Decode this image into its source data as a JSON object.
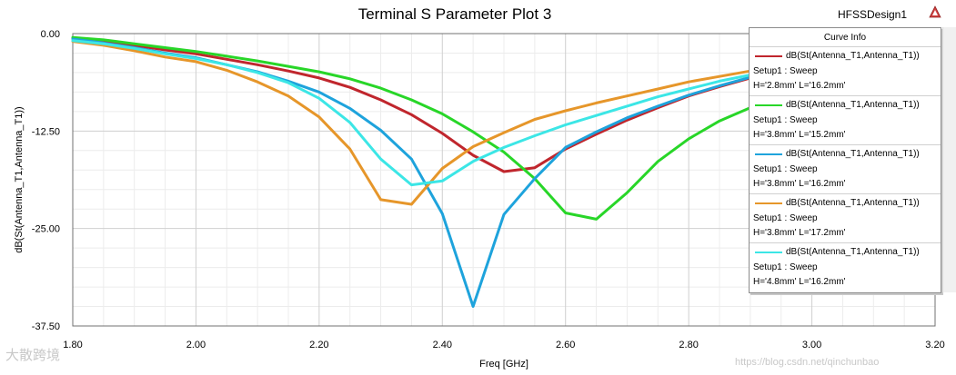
{
  "header": {
    "design_name": "HFSSDesign1"
  },
  "legend": {
    "title": "Curve Info",
    "entries": [
      {
        "name": "dB(St(Antenna_T1,Antenna_T1))",
        "setup": "Setup1 : Sweep",
        "params": "H='2.8mm' L='16.2mm'",
        "color": "#c0262d"
      },
      {
        "name": "dB(St(Antenna_T1,Antenna_T1))",
        "setup": "Setup1 : Sweep",
        "params": "H='3.8mm' L='15.2mm'",
        "color": "#28d628"
      },
      {
        "name": "dB(St(Antenna_T1,Antenna_T1))",
        "setup": "Setup1 : Sweep",
        "params": "H='3.8mm' L='16.2mm'",
        "color": "#1ea3dc"
      },
      {
        "name": "dB(St(Antenna_T1,Antenna_T1))",
        "setup": "Setup1 : Sweep",
        "params": "H='3.8mm' L='17.2mm'",
        "color": "#e6962a"
      },
      {
        "name": "dB(St(Antenna_T1,Antenna_T1))",
        "setup": "Setup1 : Sweep",
        "params": "H='4.8mm' L='16.2mm'",
        "color": "#3ce6e6"
      }
    ]
  },
  "watermarks": {
    "left": "大散跨境",
    "right": "https://blog.csdn.net/qinchunbao"
  },
  "chart_data": {
    "type": "line",
    "title": "Terminal S Parameter Plot 3",
    "xlabel": "Freq [GHz]",
    "ylabel": "dB(St(Antenna_T1,Antenna_T1))",
    "xlim": [
      1.8,
      3.2
    ],
    "ylim": [
      -37.5,
      0.0
    ],
    "xticks": [
      "1.80",
      "2.00",
      "2.20",
      "2.40",
      "2.60",
      "2.80",
      "3.00",
      "3.20"
    ],
    "yticks": [
      "0.00",
      "-12.50",
      "-25.00",
      "-37.50"
    ],
    "grid": true,
    "legend_position": "top-right",
    "x": [
      1.8,
      1.85,
      1.9,
      1.95,
      2.0,
      2.05,
      2.1,
      2.15,
      2.2,
      2.25,
      2.3,
      2.35,
      2.4,
      2.45,
      2.5,
      2.55,
      2.6,
      2.65,
      2.7,
      2.75,
      2.8,
      2.85,
      2.9
    ],
    "series": [
      {
        "name": "dB(St(Antenna_T1,Antenna_T1)) H='2.8mm' L='16.2mm'",
        "color": "#c0262d",
        "values": [
          -0.6,
          -1.0,
          -1.5,
          -2.1,
          -2.6,
          -3.3,
          -4.0,
          -4.8,
          -5.7,
          -6.9,
          -8.5,
          -10.4,
          -12.8,
          -15.6,
          -17.7,
          -17.2,
          -14.8,
          -12.9,
          -11.1,
          -9.5,
          -8.0,
          -6.8,
          -5.7
        ]
      },
      {
        "name": "dB(St(Antenna_T1,Antenna_T1)) H='3.8mm' L='15.2mm'",
        "color": "#28d628",
        "values": [
          -0.5,
          -0.8,
          -1.3,
          -1.8,
          -2.3,
          -2.9,
          -3.5,
          -4.2,
          -4.9,
          -5.8,
          -7.0,
          -8.5,
          -10.3,
          -12.6,
          -15.2,
          -18.6,
          -23.0,
          -23.8,
          -20.4,
          -16.4,
          -13.5,
          -11.2,
          -9.5
        ]
      },
      {
        "name": "dB(St(Antenna_T1,Antenna_T1)) H='3.8mm' L='16.2mm'",
        "color": "#1ea3dc",
        "values": [
          -0.7,
          -1.2,
          -1.8,
          -2.5,
          -3.1,
          -4.0,
          -4.9,
          -6.1,
          -7.5,
          -9.6,
          -12.4,
          -16.1,
          -23.1,
          -35.0,
          -23.2,
          -18.6,
          -14.6,
          -12.6,
          -10.8,
          -9.3,
          -7.9,
          -6.7,
          -5.6
        ]
      },
      {
        "name": "dB(St(Antenna_T1,Antenna_T1)) H='3.8mm' L='17.2mm'",
        "color": "#e6962a",
        "values": [
          -1.0,
          -1.5,
          -2.2,
          -3.0,
          -3.6,
          -4.7,
          -6.2,
          -8.0,
          -10.7,
          -14.8,
          -21.3,
          -21.9,
          -17.3,
          -14.5,
          -12.7,
          -11.0,
          -9.9,
          -8.9,
          -8.0,
          -7.1,
          -6.2,
          -5.5,
          -4.8
        ]
      },
      {
        "name": "dB(St(Antenna_T1,Antenna_T1)) H='4.8mm' L='16.2mm'",
        "color": "#3ce6e6",
        "values": [
          -0.9,
          -1.3,
          -1.9,
          -2.6,
          -3.2,
          -4.0,
          -5.0,
          -6.3,
          -8.3,
          -11.4,
          -16.1,
          -19.4,
          -18.9,
          -16.4,
          -14.6,
          -13.1,
          -11.7,
          -10.5,
          -9.3,
          -8.1,
          -7.1,
          -6.1,
          -5.3
        ]
      }
    ]
  }
}
